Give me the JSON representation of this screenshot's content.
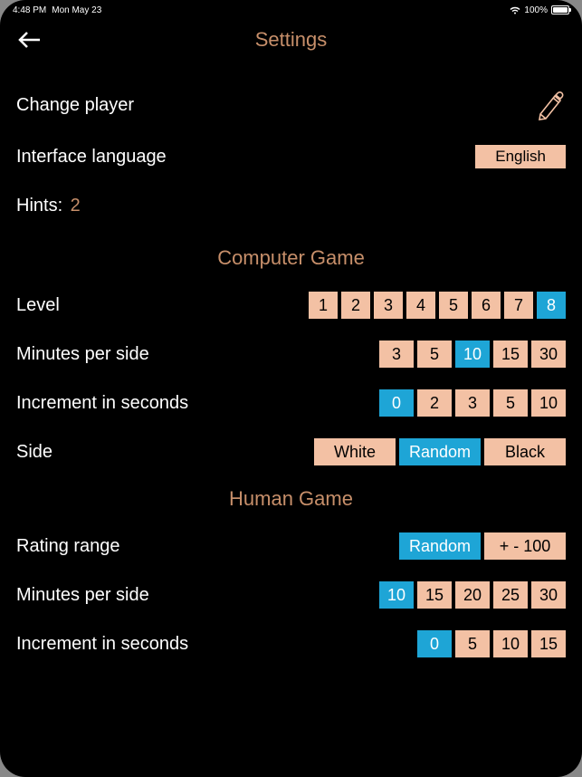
{
  "status": {
    "time": "4:48 PM",
    "date": "Mon May 23",
    "battery_pct": "100%"
  },
  "header": {
    "title": "Settings"
  },
  "settings": {
    "change_player_label": "Change player",
    "interface_language_label": "Interface language",
    "language_value": "English",
    "hints_label": "Hints:",
    "hints_value": "2"
  },
  "sections": {
    "computer_game": "Computer Game",
    "human_game": "Human Game"
  },
  "computer": {
    "level_label": "Level",
    "level_options": [
      "1",
      "2",
      "3",
      "4",
      "5",
      "6",
      "7",
      "8"
    ],
    "level_selected": "8",
    "minutes_label": "Minutes per side",
    "minutes_options": [
      "3",
      "5",
      "10",
      "15",
      "30"
    ],
    "minutes_selected": "10",
    "increment_label": "Increment in seconds",
    "increment_options": [
      "0",
      "2",
      "3",
      "5",
      "10"
    ],
    "increment_selected": "0",
    "side_label": "Side",
    "side_options": [
      "White",
      "Random",
      "Black"
    ],
    "side_selected": "Random"
  },
  "human": {
    "rating_label": "Rating range",
    "rating_options": [
      "Random",
      "+ - 100"
    ],
    "rating_selected": "Random",
    "minutes_label": "Minutes per side",
    "minutes_options": [
      "10",
      "15",
      "20",
      "25",
      "30"
    ],
    "minutes_selected": "10",
    "increment_label": "Increment in seconds",
    "increment_options": [
      "0",
      "5",
      "10",
      "15"
    ],
    "increment_selected": "0"
  },
  "colors": {
    "accent_text": "#c78f6a",
    "pill_bg": "#f3c1a4",
    "selected_bg": "#1ea5d6",
    "background": "#000000",
    "text": "#ffffff"
  }
}
